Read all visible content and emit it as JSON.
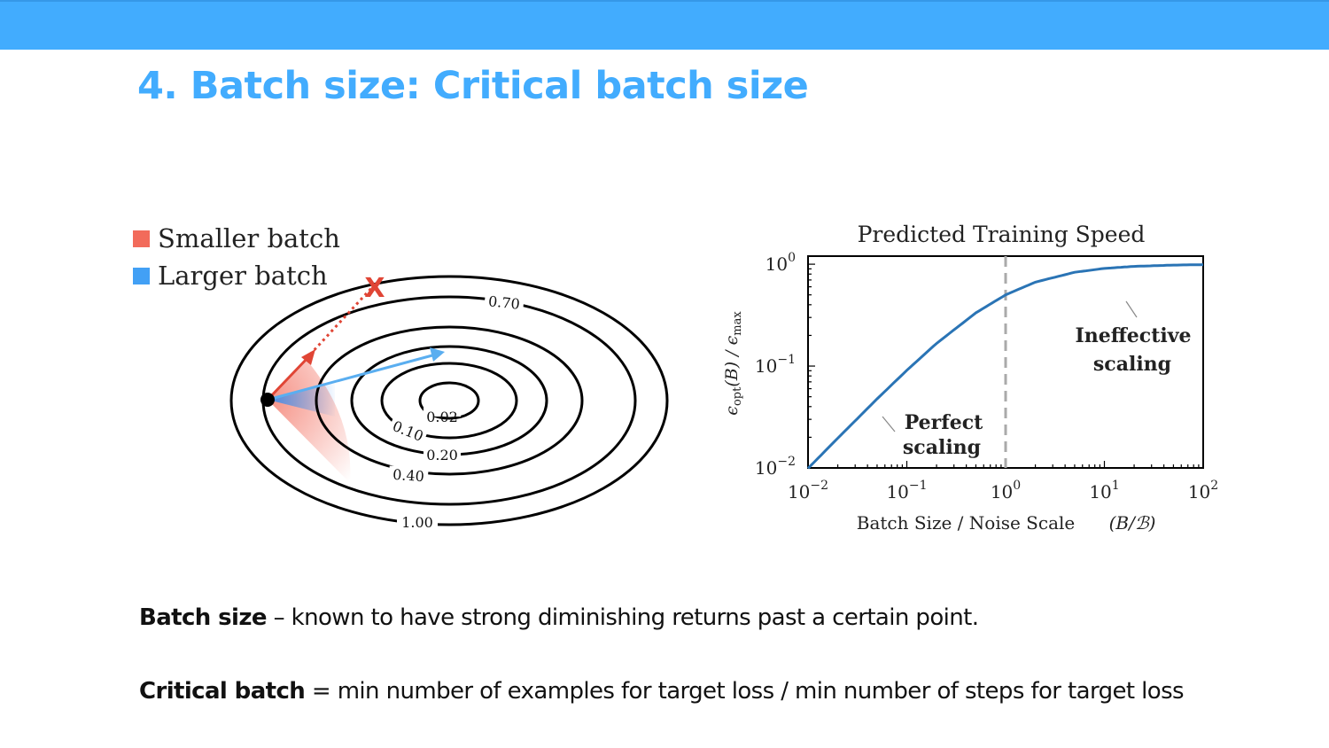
{
  "slide": {
    "title": "4. Batch size: Critical batch size"
  },
  "legend": {
    "items": [
      {
        "label": "Smaller batch",
        "color": "#f26b5b"
      },
      {
        "label": "Larger batch",
        "color": "#42a0f5"
      }
    ]
  },
  "contour": {
    "labels": [
      "0.02",
      "0.10",
      "0.20",
      "0.40",
      "0.70",
      "1.00"
    ],
    "failure_marker": "X"
  },
  "chart_data": {
    "type": "line",
    "title": "Predicted Training Speed",
    "xlabel": "Batch Size / Noise Scale",
    "xlabel_math": "(B/ℬ)",
    "ylabel": "ϵopt(B) / ϵmax",
    "ylabel_parts": {
      "eps": "ϵ",
      "sub1": "opt",
      "arg": "(B) / ϵ",
      "sub2": "max"
    },
    "x_scale": "log",
    "y_scale": "log",
    "xlim": [
      0.01,
      100
    ],
    "ylim": [
      0.01,
      1.2
    ],
    "x_ticks": [
      {
        "value": 0.01,
        "base": "10",
        "exp": "−2"
      },
      {
        "value": 0.1,
        "base": "10",
        "exp": "−1"
      },
      {
        "value": 1,
        "base": "10",
        "exp": "0"
      },
      {
        "value": 10,
        "base": "10",
        "exp": "1"
      },
      {
        "value": 100,
        "base": "10",
        "exp": "2"
      }
    ],
    "y_ticks": [
      {
        "value": 0.01,
        "base": "10",
        "exp": "−2"
      },
      {
        "value": 0.1,
        "base": "10",
        "exp": "−1"
      },
      {
        "value": 1,
        "base": "10",
        "exp": "0"
      }
    ],
    "series": [
      {
        "color": "#2a74b5",
        "x": [
          0.01,
          0.02,
          0.05,
          0.1,
          0.2,
          0.5,
          1,
          2,
          5,
          10,
          20,
          50,
          100
        ],
        "y": [
          0.0099,
          0.0196,
          0.0476,
          0.0909,
          0.167,
          0.333,
          0.5,
          0.667,
          0.833,
          0.909,
          0.952,
          0.98,
          0.99
        ]
      }
    ],
    "reference_line": {
      "x": 1,
      "style": "dashed",
      "color": "#aaaaaa"
    },
    "annotations": [
      {
        "line1": "Perfect",
        "line2": "scaling"
      },
      {
        "line1": "Ineffective",
        "line2": "scaling"
      }
    ]
  },
  "body": {
    "line1_bold": "Batch size",
    "line1_rest": " – known to have strong diminishing returns past a certain point.",
    "line2_bold": "Critical batch",
    "line2_rest": " = min number of examples for target loss / min number of steps for target loss"
  }
}
